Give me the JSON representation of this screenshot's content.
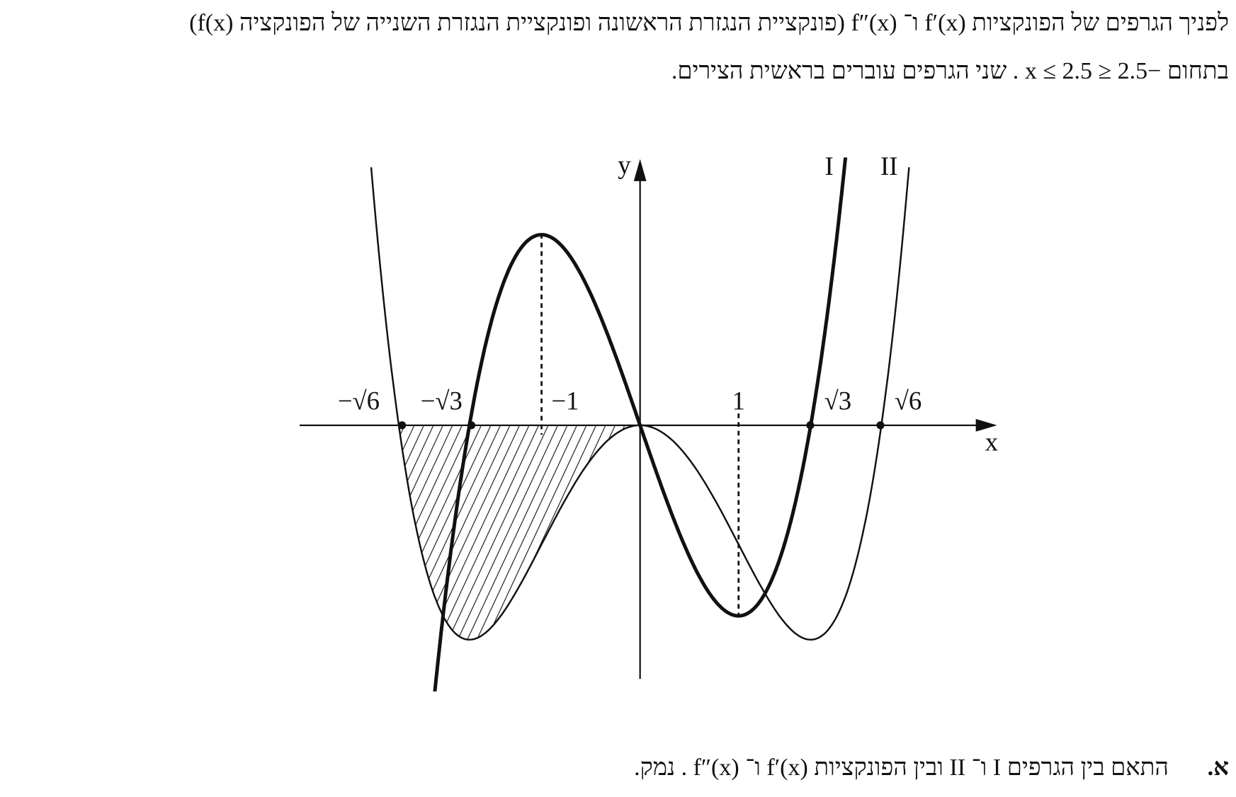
{
  "text": {
    "line1": "לפניך הגרפים של הפונקציות  f′(x)  ו־ f″(x)  (פונקציית הנגזרת הראשונה ופונקציית הנגזרת השנייה של הפונקציה  f(x))",
    "line2": "בתחום  −2.5 ≤ x ≤ 2.5 .  שני הגרפים עוברים בראשית הצירים."
  },
  "diagram": {
    "x_axis": "x",
    "y_axis": "y",
    "tick_labels": [
      "−√6",
      "−√3",
      "−1",
      "1",
      "√3",
      "√6"
    ],
    "curve_labels": [
      "I",
      "II"
    ]
  },
  "question": {
    "marker": "א.",
    "text": "התאם בין הגרפים  I  ו־ II  ובין הפונקציות  f′(x)  ו־ f″(x) . נמק."
  }
}
